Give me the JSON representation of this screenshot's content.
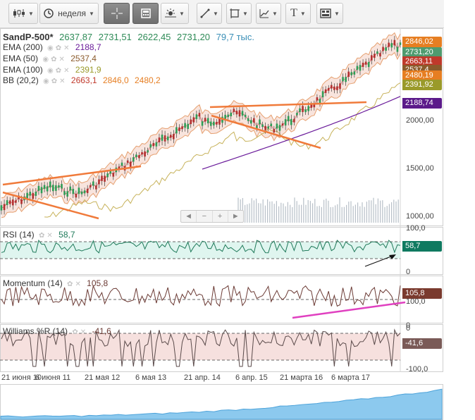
{
  "toolbar": {
    "chart_type_icon": "candlestick-icon",
    "period_label": "неделя",
    "crosshair_icon": "crosshair-icon",
    "calculator_icon": "calculator-icon",
    "indicators_icon": "indicators-icon",
    "line_tool_icon": "line-tool-icon",
    "shapes_icon": "shapes-icon",
    "fib_icon": "fibonacci-icon",
    "text_icon": "text-icon",
    "text_label": "T",
    "save_icon": "save-layout-icon"
  },
  "title": {
    "symbol": "SandP-500*",
    "open": "2637,87",
    "high": "2731,51",
    "low": "2622,45",
    "close": "2731,20",
    "volume": "79,7 тыс."
  },
  "indicators": [
    {
      "name": "EMA (200)",
      "values": [
        "2188,7"
      ],
      "color": "#6a1b9a"
    },
    {
      "name": "EMA (50)",
      "values": [
        "2537,4"
      ],
      "color": "#8b5a2b"
    },
    {
      "name": "EMA (100)",
      "values": [
        "2391,9"
      ],
      "color": "#9a9a2a"
    },
    {
      "name": "BB (20,2)",
      "values": [
        "2663,1",
        "2846,0",
        "2480,2"
      ],
      "colors": [
        "#c0392b",
        "#e67e22",
        "#e67e22"
      ]
    }
  ],
  "price_tags": [
    {
      "text": "2846,02",
      "color": "#e67e22"
    },
    {
      "text": "2731,20",
      "color": "#4f9b6f"
    },
    {
      "text": "2663,11",
      "color": "#c0392b"
    },
    {
      "text": "2537,4",
      "color": "#8b5a2b"
    },
    {
      "text": "2480,19",
      "color": "#e67e22"
    },
    {
      "text": "2391,92",
      "color": "#9a9a2a"
    },
    {
      "text": "2188,74",
      "color": "#5b1a8a"
    }
  ],
  "price_axis": [
    "2000,00",
    "1500,00",
    "1000,00"
  ],
  "zoom": {
    "left": "◄",
    "minus": "−",
    "plus": "+",
    "right": "►"
  },
  "rsi": {
    "label": "RSI (14)",
    "value": "58,7",
    "axis_top": "100,0",
    "axis_bottom": "0",
    "tag": "58,7",
    "tag_color": "#0f7a60"
  },
  "momentum": {
    "label": "Momentum (14)",
    "value": "105,8",
    "axis_mid": "100,0",
    "axis_bottom": "0",
    "tag": "105,8",
    "tag_color": "#7a3a2e"
  },
  "williams": {
    "label": "Williams %R (14)",
    "value": "-41,6",
    "axis_top": "0",
    "axis_bottom": "-100,0",
    "tag": "-41,6",
    "tag_color": "#7a5a57"
  },
  "dates": [
    "21 июня 10",
    "6 июня 11",
    "21 мая 12",
    "6 мая 13",
    "21 апр. 14",
    "6 апр. 15",
    "21 марта 16",
    "6 марта 17"
  ],
  "colors": {
    "candle_up": "#2e9e57",
    "candle_down": "#b23030",
    "bb_fill": "#f6ddd4",
    "trendline": "#f07a3a",
    "rsi_line": "#1f7a5a",
    "osc_line": "#6b3a34",
    "momentum_arrow": "#e040c0",
    "navigator": "#8cc9ee"
  }
}
